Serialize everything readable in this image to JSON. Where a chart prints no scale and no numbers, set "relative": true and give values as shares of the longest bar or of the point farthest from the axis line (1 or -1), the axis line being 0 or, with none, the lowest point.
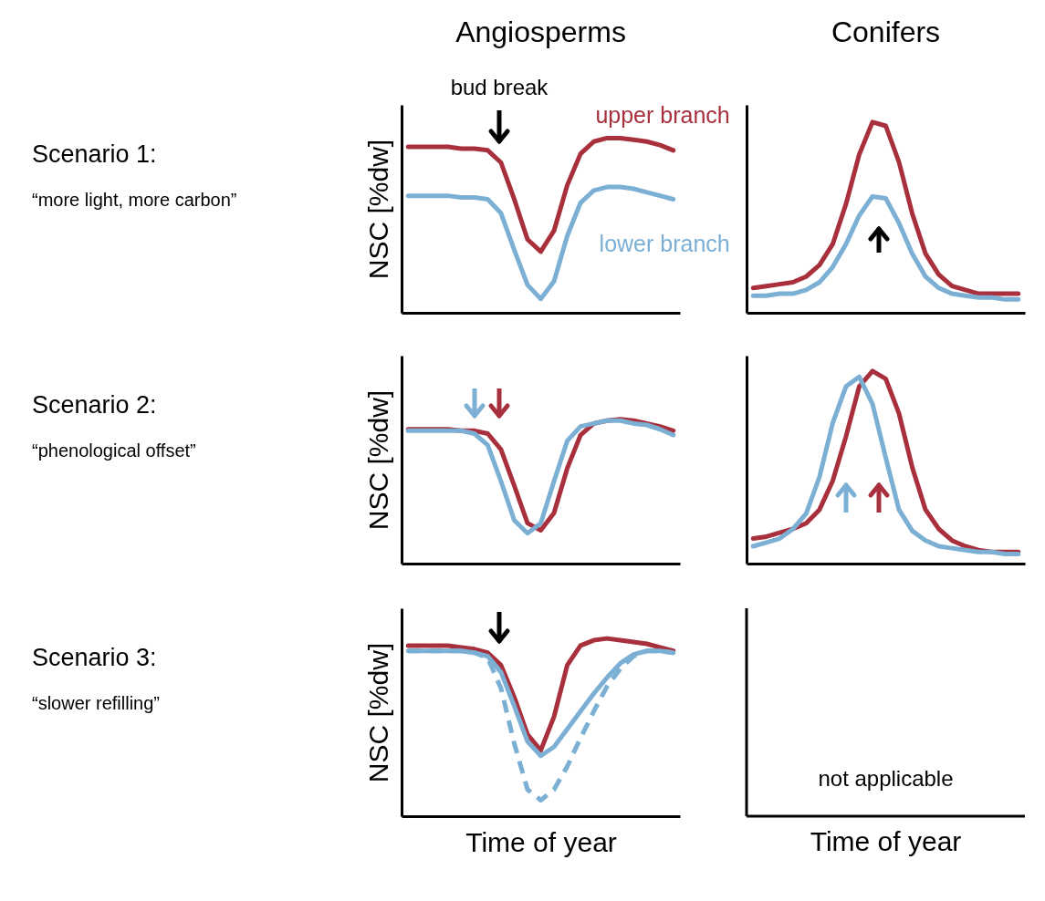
{
  "chart_data": [
    {
      "type": "other",
      "title": "Scenario 1:",
      "subtitle": "“more light, more carbon”"
    },
    {
      "type": "line",
      "title": "Angiosperms",
      "ylabel": "NSC [%dw]",
      "relative": true,
      "categories": [
        null,
        null,
        null,
        null,
        null,
        null,
        null,
        null,
        null,
        null,
        null,
        null,
        null,
        null,
        null,
        null,
        null,
        null,
        null,
        null,
        null
      ],
      "annotations": [
        "bud break"
      ],
      "series": [
        {
          "name": "upper branch",
          "color": "#a8303c",
          "values": [
            0.95,
            0.95,
            0.95,
            0.95,
            0.94,
            0.94,
            0.93,
            0.86,
            0.65,
            0.42,
            0.35,
            0.47,
            0.73,
            0.91,
            0.98,
            1,
            1,
            0.99,
            0.98,
            0.96,
            0.93
          ]
        },
        {
          "name": "lower branch",
          "color": "#7bafd4",
          "values": [
            0.67,
            0.67,
            0.67,
            0.67,
            0.66,
            0.66,
            0.65,
            0.57,
            0.36,
            0.16,
            0.08,
            0.18,
            0.44,
            0.63,
            0.7,
            0.72,
            0.72,
            0.71,
            0.69,
            0.67,
            0.65
          ]
        }
      ]
    },
    {
      "type": "line",
      "title": "Conifers",
      "relative": true,
      "categories": [
        null,
        null,
        null,
        null,
        null,
        null,
        null,
        null,
        null,
        null,
        null,
        null,
        null,
        null,
        null,
        null,
        null,
        null,
        null,
        null,
        null
      ],
      "series": [
        {
          "color": "#a8303c",
          "values": [
            0.13,
            0.14,
            0.15,
            0.16,
            0.19,
            0.25,
            0.36,
            0.57,
            0.83,
            1,
            0.98,
            0.79,
            0.52,
            0.31,
            0.2,
            0.14,
            0.12,
            0.1,
            0.1,
            0.1,
            0.1
          ]
        },
        {
          "color": "#7bafd4",
          "values": [
            0.09,
            0.09,
            0.1,
            0.1,
            0.12,
            0.16,
            0.24,
            0.36,
            0.51,
            0.61,
            0.6,
            0.47,
            0.31,
            0.19,
            0.13,
            0.1,
            0.09,
            0.08,
            0.08,
            0.07,
            0.07
          ]
        }
      ]
    },
    {
      "type": "other",
      "title": "Scenario 2:",
      "subtitle": "“phenological offset”"
    },
    {
      "type": "line",
      "ylabel": "NSC [%dw]",
      "relative": true,
      "categories": [
        null,
        null,
        null,
        null,
        null,
        null,
        null,
        null,
        null,
        null,
        null,
        null,
        null,
        null,
        null,
        null,
        null,
        null,
        null,
        null,
        null
      ],
      "series": [
        {
          "color": "#a8303c",
          "values": [
            0.93,
            0.93,
            0.93,
            0.93,
            0.92,
            0.92,
            0.9,
            0.79,
            0.54,
            0.28,
            0.23,
            0.35,
            0.66,
            0.89,
            0.97,
            0.99,
            1,
            0.99,
            0.97,
            0.95,
            0.92
          ]
        },
        {
          "color": "#7bafd4",
          "values": [
            0.92,
            0.92,
            0.92,
            0.92,
            0.92,
            0.9,
            0.82,
            0.57,
            0.3,
            0.21,
            0.28,
            0.57,
            0.85,
            0.95,
            0.97,
            0.99,
            0.99,
            0.97,
            0.96,
            0.93,
            0.89
          ]
        }
      ]
    },
    {
      "type": "line",
      "relative": true,
      "categories": [
        null,
        null,
        null,
        null,
        null,
        null,
        null,
        null,
        null,
        null,
        null,
        null,
        null,
        null,
        null,
        null,
        null,
        null,
        null,
        null,
        null
      ],
      "series": [
        {
          "color": "#a8303c",
          "values": [
            0.13,
            0.14,
            0.16,
            0.18,
            0.21,
            0.28,
            0.43,
            0.66,
            0.92,
            1,
            0.96,
            0.78,
            0.5,
            0.28,
            0.18,
            0.12,
            0.09,
            0.07,
            0.06,
            0.06,
            0.06
          ]
        },
        {
          "color": "#7bafd4",
          "values": [
            0.09,
            0.11,
            0.13,
            0.18,
            0.26,
            0.45,
            0.73,
            0.92,
            0.97,
            0.83,
            0.55,
            0.28,
            0.17,
            0.12,
            0.09,
            0.08,
            0.07,
            0.06,
            0.06,
            0.05,
            0.05
          ]
        }
      ]
    },
    {
      "type": "other",
      "title": "Scenario 3:",
      "subtitle": "“slower refilling”"
    },
    {
      "type": "line",
      "ylabel": "NSC [%dw]",
      "xlabel": "Time of year",
      "relative": true,
      "categories": [
        null,
        null,
        null,
        null,
        null,
        null,
        null,
        null,
        null,
        null,
        null,
        null,
        null,
        null,
        null,
        null,
        null,
        null,
        null,
        null,
        null
      ],
      "series": [
        {
          "color": "#a8303c",
          "values": [
            0.96,
            0.96,
            0.96,
            0.96,
            0.95,
            0.94,
            0.92,
            0.85,
            0.67,
            0.46,
            0.37,
            0.56,
            0.85,
            0.96,
            0.99,
            1,
            0.99,
            0.98,
            0.97,
            0.95,
            0.93
          ]
        },
        {
          "color": "#7bafd4",
          "values": [
            0.93,
            0.93,
            0.93,
            0.93,
            0.93,
            0.92,
            0.9,
            0.81,
            0.62,
            0.42,
            0.34,
            0.39,
            0.49,
            0.59,
            0.69,
            0.78,
            0.86,
            0.91,
            0.93,
            0.93,
            0.92
          ]
        },
        {
          "color": "#7bafd4",
          "line_style": "dashed",
          "values": [
            0.93,
            0.93,
            0.93,
            0.93,
            0.93,
            0.92,
            0.89,
            0.72,
            0.41,
            0.15,
            0.09,
            0.15,
            0.28,
            0.44,
            0.59,
            0.73,
            0.83,
            0.9,
            0.93,
            0.93,
            0.92
          ]
        }
      ]
    },
    {
      "type": "other",
      "xlabel": "Time of year",
      "annotations": [
        "not applicable"
      ]
    }
  ]
}
